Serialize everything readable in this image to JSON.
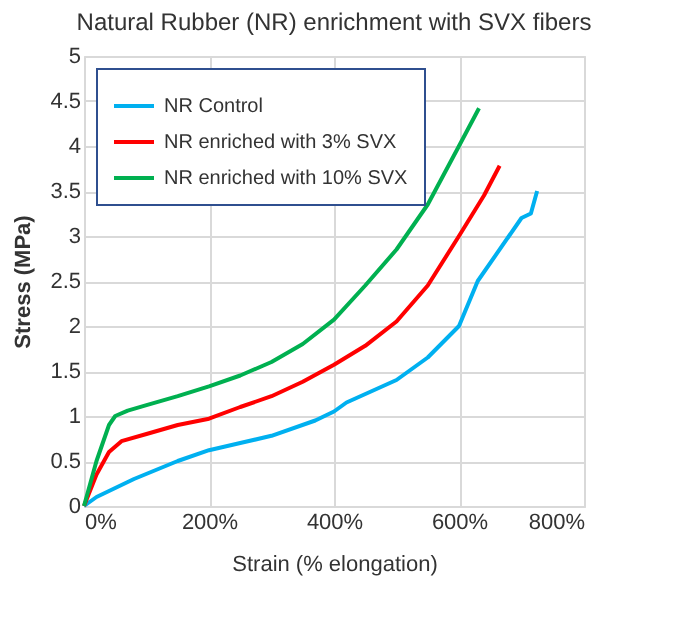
{
  "chart_data": {
    "type": "line",
    "title": "Natural Rubber (NR)  enrichment with SVX fibers",
    "xlabel": "Strain (% elongation)",
    "ylabel": "Stress (MPa)",
    "xlim": [
      0,
      800
    ],
    "xticks": [
      {
        "value": 0,
        "label": "0%"
      },
      {
        "value": 200,
        "label": "200%"
      },
      {
        "value": 400,
        "label": "400%"
      },
      {
        "value": 600,
        "label": "600%"
      },
      {
        "value": 800,
        "label": "800%"
      }
    ],
    "ylim": [
      0,
      5
    ],
    "yticks": [
      0,
      0.5,
      1,
      1.5,
      2,
      2.5,
      3,
      3.5,
      4,
      4.5,
      5
    ],
    "grid": true,
    "legend": "top left",
    "marker": "none",
    "line_style": "solid",
    "series": [
      {
        "name": "NR Control",
        "color": "#00b0f0",
        "x": [
          0,
          20,
          50,
          80,
          150,
          200,
          250,
          300,
          370,
          400,
          420,
          500,
          550,
          600,
          630,
          680,
          700,
          715,
          725
        ],
        "values": [
          0,
          0.1,
          0.2,
          0.3,
          0.5,
          0.62,
          0.7,
          0.78,
          0.95,
          1.05,
          1.15,
          1.4,
          1.65,
          2.0,
          2.5,
          3.0,
          3.2,
          3.25,
          3.5
        ]
      },
      {
        "name": "NR enriched with 3% SVX",
        "color": "#ff0000",
        "x": [
          0,
          20,
          40,
          60,
          100,
          150,
          200,
          250,
          300,
          350,
          400,
          450,
          500,
          550,
          600,
          640,
          665
        ],
        "values": [
          0,
          0.35,
          0.6,
          0.72,
          0.8,
          0.9,
          0.97,
          1.1,
          1.22,
          1.38,
          1.57,
          1.78,
          2.05,
          2.45,
          3.0,
          3.45,
          3.78
        ]
      },
      {
        "name": "NR enriched with 10% SVX",
        "color": "#00b050",
        "x": [
          0,
          20,
          40,
          50,
          70,
          100,
          150,
          200,
          250,
          300,
          350,
          400,
          450,
          500,
          550,
          600,
          632
        ],
        "values": [
          0,
          0.5,
          0.9,
          1.0,
          1.06,
          1.12,
          1.22,
          1.33,
          1.45,
          1.6,
          1.8,
          2.07,
          2.45,
          2.85,
          3.35,
          4.0,
          4.42
        ]
      }
    ]
  }
}
